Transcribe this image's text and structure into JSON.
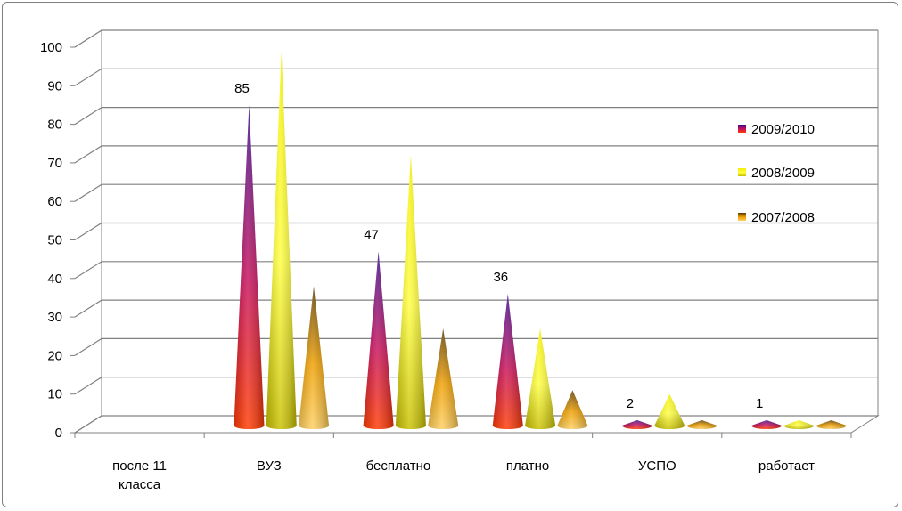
{
  "chart_data": {
    "type": "bar",
    "style": "3d-cone",
    "categories": [
      [
        "после 11",
        "класса"
      ],
      [
        "ВУЗ"
      ],
      [
        "бесплатно"
      ],
      [
        "платно"
      ],
      [
        "УСПО"
      ],
      [
        "работает"
      ]
    ],
    "series": [
      {
        "name": "2009/2010",
        "values": [
          0,
          85,
          47,
          36,
          2,
          1
        ],
        "colors": [
          "#3a0a8c",
          "#c8105a",
          "#ff3a00"
        ],
        "data_labels": [
          "",
          "85",
          "47",
          "36",
          "2",
          "1"
        ]
      },
      {
        "name": "2008/2009",
        "values": [
          0,
          99,
          72,
          27,
          10,
          1
        ],
        "colors": [
          "#f4f000",
          "#ffff40",
          "#c8c000"
        ]
      },
      {
        "name": "2007/2008",
        "values": [
          0,
          38,
          27,
          11,
          1,
          1
        ],
        "colors": [
          "#5a3a00",
          "#f0a000",
          "#ffd060"
        ]
      }
    ],
    "ylim": [
      0,
      100
    ],
    "yticks": [
      0,
      10,
      20,
      30,
      40,
      50,
      60,
      70,
      80,
      90,
      100
    ],
    "grid": true,
    "legend_position": "right",
    "title": "",
    "xlabel": "",
    "ylabel": ""
  }
}
